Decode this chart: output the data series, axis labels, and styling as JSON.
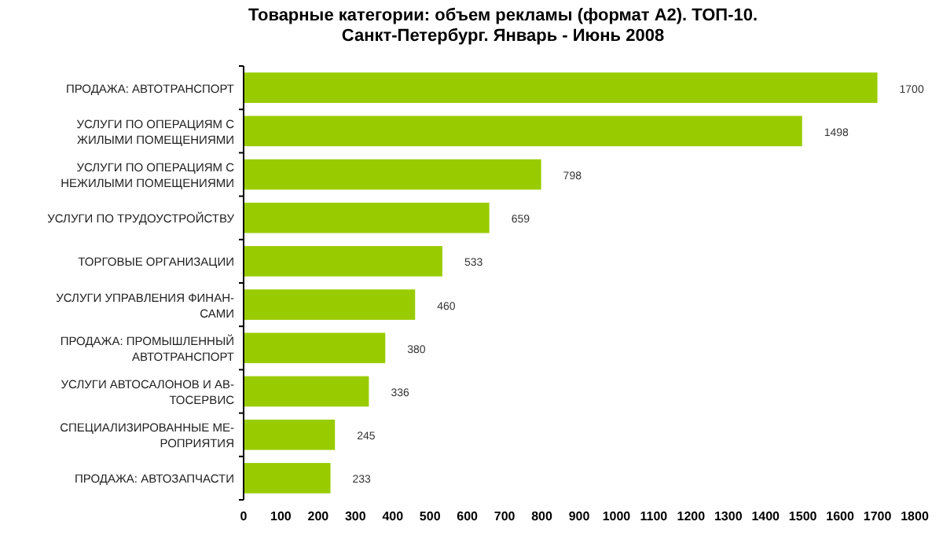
{
  "chart_data": {
    "type": "bar",
    "orientation": "horizontal",
    "title": "Товарные категории: объем рекламы (формат А2). ТОП-10.\nСанкт-Петербург. Январь - Июнь 2008",
    "categories": [
      "ПРОДАЖА: АВТОТРАНСПОРТ",
      "УСЛУГИ ПО ОПЕРАЦИЯМ С\nЖИЛЫМИ ПОМЕЩЕНИЯМИ",
      "УСЛУГИ ПО ОПЕРАЦИЯМ С\nНЕЖИЛЫМИ ПОМЕЩЕНИЯМИ",
      "УСЛУГИ ПО ТРУДОУСТРОЙСТВУ",
      "ТОРГОВЫЕ ОРГАНИЗАЦИИ",
      "УСЛУГИ УПРАВЛЕНИЯ ФИНАН-\nСАМИ",
      "ПРОДАЖА: ПРОМЫШЛЕННЫЙ\nАВТОТРАНСПОРТ",
      "УСЛУГИ АВТОСАЛОНОВ И АВ-\nТОСЕРВИС",
      "СПЕЦИАЛИЗИРОВАННЫЕ МЕ-\nРОПРИЯТИЯ",
      "ПРОДАЖА: АВТОЗАПЧАСТИ"
    ],
    "values": [
      1700,
      1498,
      798,
      659,
      533,
      460,
      380,
      336,
      245,
      233
    ],
    "color": "#99cc00",
    "data_labels": true,
    "grid": false,
    "xlim": [
      0,
      1800
    ],
    "xticks": [
      0,
      100,
      200,
      300,
      400,
      500,
      600,
      700,
      800,
      900,
      1000,
      1100,
      1200,
      1300,
      1400,
      1500,
      1600,
      1700,
      1800
    ]
  }
}
